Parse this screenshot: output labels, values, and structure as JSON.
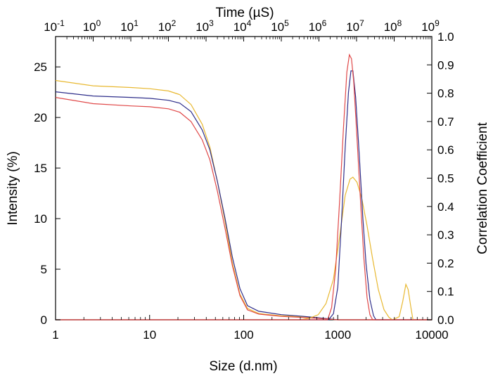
{
  "chart_data": {
    "type": "line",
    "title": "",
    "xlabel": "Size (d.nm)",
    "ylabel": "Intensity (%)",
    "y2label": "Correlation Coefficient",
    "x2label": "Time (µS)",
    "x_scale": "log",
    "x2_scale": "log",
    "xlim": [
      1,
      10000
    ],
    "ylim": [
      0,
      28
    ],
    "y2lim": [
      0,
      1.0
    ],
    "x2lim_exponent": [
      -1,
      9
    ],
    "x_ticks": [
      {
        "value": 1,
        "label": "1"
      },
      {
        "value": 10,
        "label": "10"
      },
      {
        "value": 100,
        "label": "100"
      },
      {
        "value": 1000,
        "label": "1000"
      },
      {
        "value": 10000,
        "label": "10000"
      }
    ],
    "y_ticks": [
      {
        "value": 0,
        "label": "0"
      },
      {
        "value": 5,
        "label": "5"
      },
      {
        "value": 10,
        "label": "10"
      },
      {
        "value": 15,
        "label": "15"
      },
      {
        "value": 20,
        "label": "20"
      },
      {
        "value": 25,
        "label": "25"
      }
    ],
    "y2_ticks": [
      {
        "value": 0.0,
        "label": "0.0"
      },
      {
        "value": 0.1,
        "label": "0.1"
      },
      {
        "value": 0.2,
        "label": "0.2"
      },
      {
        "value": 0.3,
        "label": "0.3"
      },
      {
        "value": 0.4,
        "label": "0.4"
      },
      {
        "value": 0.5,
        "label": "0.5"
      },
      {
        "value": 0.6,
        "label": "0.6"
      },
      {
        "value": 0.7,
        "label": "0.7"
      },
      {
        "value": 0.8,
        "label": "0.8"
      },
      {
        "value": 0.9,
        "label": "0.9"
      },
      {
        "value": 1.0,
        "label": "1.0"
      }
    ],
    "x2_ticks": [
      {
        "exp": -1,
        "base": "10",
        "sup": "-1"
      },
      {
        "exp": 0,
        "base": "10",
        "sup": "0"
      },
      {
        "exp": 1,
        "base": "10",
        "sup": "1"
      },
      {
        "exp": 2,
        "base": "10",
        "sup": "2"
      },
      {
        "exp": 3,
        "base": "10",
        "sup": "3"
      },
      {
        "exp": 4,
        "base": "10",
        "sup": "4"
      },
      {
        "exp": 5,
        "base": "10",
        "sup": "5"
      },
      {
        "exp": 6,
        "base": "10",
        "sup": "6"
      },
      {
        "exp": 7,
        "base": "10",
        "sup": "7"
      },
      {
        "exp": 8,
        "base": "10",
        "sup": "8"
      },
      {
        "exp": 9,
        "base": "10",
        "sup": "9"
      }
    ],
    "legend": "none",
    "grid": false,
    "correlation_series": [
      {
        "color": "#e8b830",
        "points": [
          [
            -1,
            0.845
          ],
          [
            0,
            0.826
          ],
          [
            1,
            0.82
          ],
          [
            1.5,
            0.816
          ],
          [
            2,
            0.808
          ],
          [
            2.3,
            0.795
          ],
          [
            2.6,
            0.76
          ],
          [
            2.9,
            0.69
          ],
          [
            3.1,
            0.61
          ],
          [
            3.3,
            0.49
          ],
          [
            3.5,
            0.35
          ],
          [
            3.7,
            0.2
          ],
          [
            3.9,
            0.09
          ],
          [
            4.1,
            0.04
          ],
          [
            4.4,
            0.022
          ],
          [
            5,
            0.014
          ],
          [
            5.6,
            0.01
          ],
          [
            6,
            0.006
          ],
          [
            6.3,
            0.002
          ],
          [
            6.5,
            0.0
          ],
          [
            9,
            0.0
          ]
        ]
      },
      {
        "color": "#2e2e8a",
        "points": [
          [
            -1,
            0.805
          ],
          [
            0,
            0.79
          ],
          [
            1,
            0.785
          ],
          [
            1.5,
            0.782
          ],
          [
            2,
            0.775
          ],
          [
            2.3,
            0.765
          ],
          [
            2.6,
            0.735
          ],
          [
            2.9,
            0.67
          ],
          [
            3.1,
            0.6
          ],
          [
            3.3,
            0.49
          ],
          [
            3.5,
            0.36
          ],
          [
            3.7,
            0.22
          ],
          [
            3.9,
            0.11
          ],
          [
            4.1,
            0.05
          ],
          [
            4.4,
            0.03
          ],
          [
            5,
            0.018
          ],
          [
            5.6,
            0.012
          ],
          [
            6,
            0.007
          ],
          [
            6.3,
            0.003
          ],
          [
            6.5,
            0.0
          ],
          [
            9,
            0.0
          ]
        ]
      },
      {
        "color": "#e04848",
        "points": [
          [
            -1,
            0.785
          ],
          [
            0,
            0.763
          ],
          [
            1,
            0.755
          ],
          [
            1.5,
            0.752
          ],
          [
            2,
            0.745
          ],
          [
            2.3,
            0.733
          ],
          [
            2.6,
            0.7
          ],
          [
            2.9,
            0.635
          ],
          [
            3.1,
            0.565
          ],
          [
            3.3,
            0.455
          ],
          [
            3.5,
            0.325
          ],
          [
            3.7,
            0.19
          ],
          [
            3.9,
            0.085
          ],
          [
            4.1,
            0.035
          ],
          [
            4.4,
            0.02
          ],
          [
            5,
            0.012
          ],
          [
            5.6,
            0.008
          ],
          [
            6,
            0.005
          ],
          [
            6.3,
            0.002
          ],
          [
            6.5,
            0.0
          ],
          [
            9,
            0.0
          ]
        ]
      }
    ],
    "intensity_series": [
      {
        "color": "#e8b830",
        "points": [
          [
            1,
            0
          ],
          [
            400,
            0
          ],
          [
            500,
            0.15
          ],
          [
            620,
            0.5
          ],
          [
            750,
            1.6
          ],
          [
            900,
            4.0
          ],
          [
            1050,
            8.3
          ],
          [
            1200,
            12.3
          ],
          [
            1350,
            13.9
          ],
          [
            1450,
            14.1
          ],
          [
            1600,
            13.6
          ],
          [
            1800,
            12.0
          ],
          [
            2050,
            9.3
          ],
          [
            2350,
            6.0
          ],
          [
            2700,
            3.0
          ],
          [
            3100,
            1.0
          ],
          [
            3500,
            0.25
          ],
          [
            3800,
            0
          ],
          [
            4500,
            0.3
          ],
          [
            4900,
            1.8
          ],
          [
            5300,
            3.5
          ],
          [
            5600,
            3.0
          ],
          [
            6000,
            1.2
          ],
          [
            6300,
            0
          ],
          [
            10000,
            0
          ]
        ]
      },
      {
        "color": "#2e2e8a",
        "points": [
          [
            1,
            0
          ],
          [
            800,
            0
          ],
          [
            900,
            0.6
          ],
          [
            1000,
            3.2
          ],
          [
            1100,
            10.0
          ],
          [
            1200,
            17.0
          ],
          [
            1300,
            22.5
          ],
          [
            1380,
            24.6
          ],
          [
            1450,
            24.6
          ],
          [
            1550,
            22.0
          ],
          [
            1700,
            16.0
          ],
          [
            1850,
            10.0
          ],
          [
            2000,
            5.5
          ],
          [
            2200,
            2.0
          ],
          [
            2400,
            0.4
          ],
          [
            2550,
            0
          ],
          [
            10000,
            0
          ]
        ]
      },
      {
        "color": "#e04848",
        "points": [
          [
            1,
            0
          ],
          [
            780,
            0
          ],
          [
            860,
            1.2
          ],
          [
            950,
            5.0
          ],
          [
            1050,
            12.0
          ],
          [
            1150,
            19.0
          ],
          [
            1250,
            24.5
          ],
          [
            1330,
            26.2
          ],
          [
            1400,
            25.8
          ],
          [
            1480,
            23.5
          ],
          [
            1600,
            18.0
          ],
          [
            1750,
            11.5
          ],
          [
            1900,
            6.0
          ],
          [
            2050,
            2.2
          ],
          [
            2200,
            0.5
          ],
          [
            2350,
            0
          ],
          [
            10000,
            0
          ]
        ]
      }
    ]
  }
}
